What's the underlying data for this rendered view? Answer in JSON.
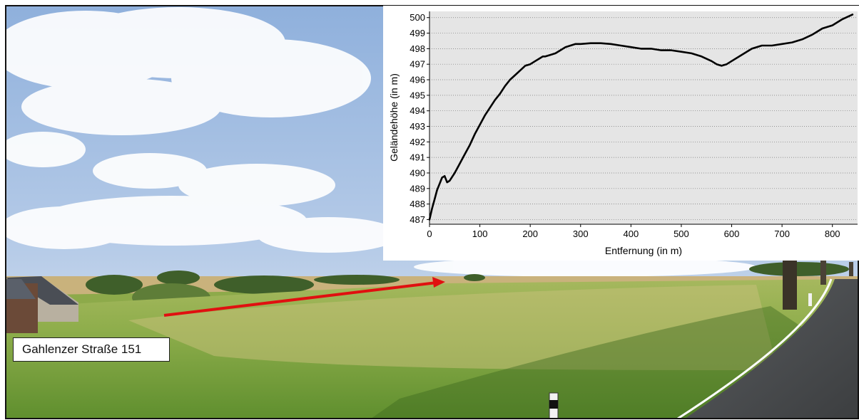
{
  "photo": {
    "address_label": "Gahlenzer Straße 151",
    "arrow_color": "#e01010"
  },
  "chart_data": {
    "type": "line",
    "title": "",
    "xlabel": "Entfernung (in m)",
    "ylabel": "Geländehöhe (in m)",
    "xlim": [
      0,
      850
    ],
    "ylim": [
      486.7,
      500.4
    ],
    "xticks": [
      0,
      100,
      200,
      300,
      400,
      500,
      600,
      700,
      800
    ],
    "yticks": [
      487,
      488,
      489,
      490,
      491,
      492,
      493,
      494,
      495,
      496,
      497,
      498,
      499,
      500
    ],
    "grid": true,
    "line_color": "#000000",
    "plot_background": "#e5e5e5",
    "series": [
      {
        "x": [
          0,
          5,
          10,
          15,
          20,
          25,
          30,
          35,
          40,
          50,
          60,
          70,
          80,
          90,
          100,
          110,
          120,
          130,
          140,
          150,
          160,
          170,
          180,
          190,
          200,
          210,
          220,
          225,
          230,
          240,
          250,
          260,
          270,
          280,
          290,
          300,
          320,
          340,
          360,
          380,
          400,
          420,
          440,
          460,
          480,
          500,
          520,
          540,
          560,
          570,
          580,
          590,
          600,
          620,
          640,
          660,
          680,
          700,
          720,
          740,
          760,
          780,
          800,
          820,
          840
        ],
        "y": [
          487.0,
          487.7,
          488.3,
          488.9,
          489.3,
          489.7,
          489.8,
          489.4,
          489.5,
          490.0,
          490.6,
          491.2,
          491.8,
          492.5,
          493.1,
          493.7,
          494.2,
          494.7,
          495.1,
          495.6,
          496.0,
          496.3,
          496.6,
          496.9,
          497.0,
          497.2,
          497.4,
          497.5,
          497.5,
          497.6,
          497.7,
          497.9,
          498.1,
          498.2,
          498.3,
          498.3,
          498.35,
          498.35,
          498.3,
          498.2,
          498.1,
          498.0,
          498.0,
          497.9,
          497.9,
          497.8,
          497.7,
          497.5,
          497.2,
          497.0,
          496.9,
          497.0,
          497.2,
          497.6,
          498.0,
          498.2,
          498.2,
          498.3,
          498.4,
          498.6,
          498.9,
          499.3,
          499.5,
          499.9,
          500.2
        ]
      }
    ]
  }
}
